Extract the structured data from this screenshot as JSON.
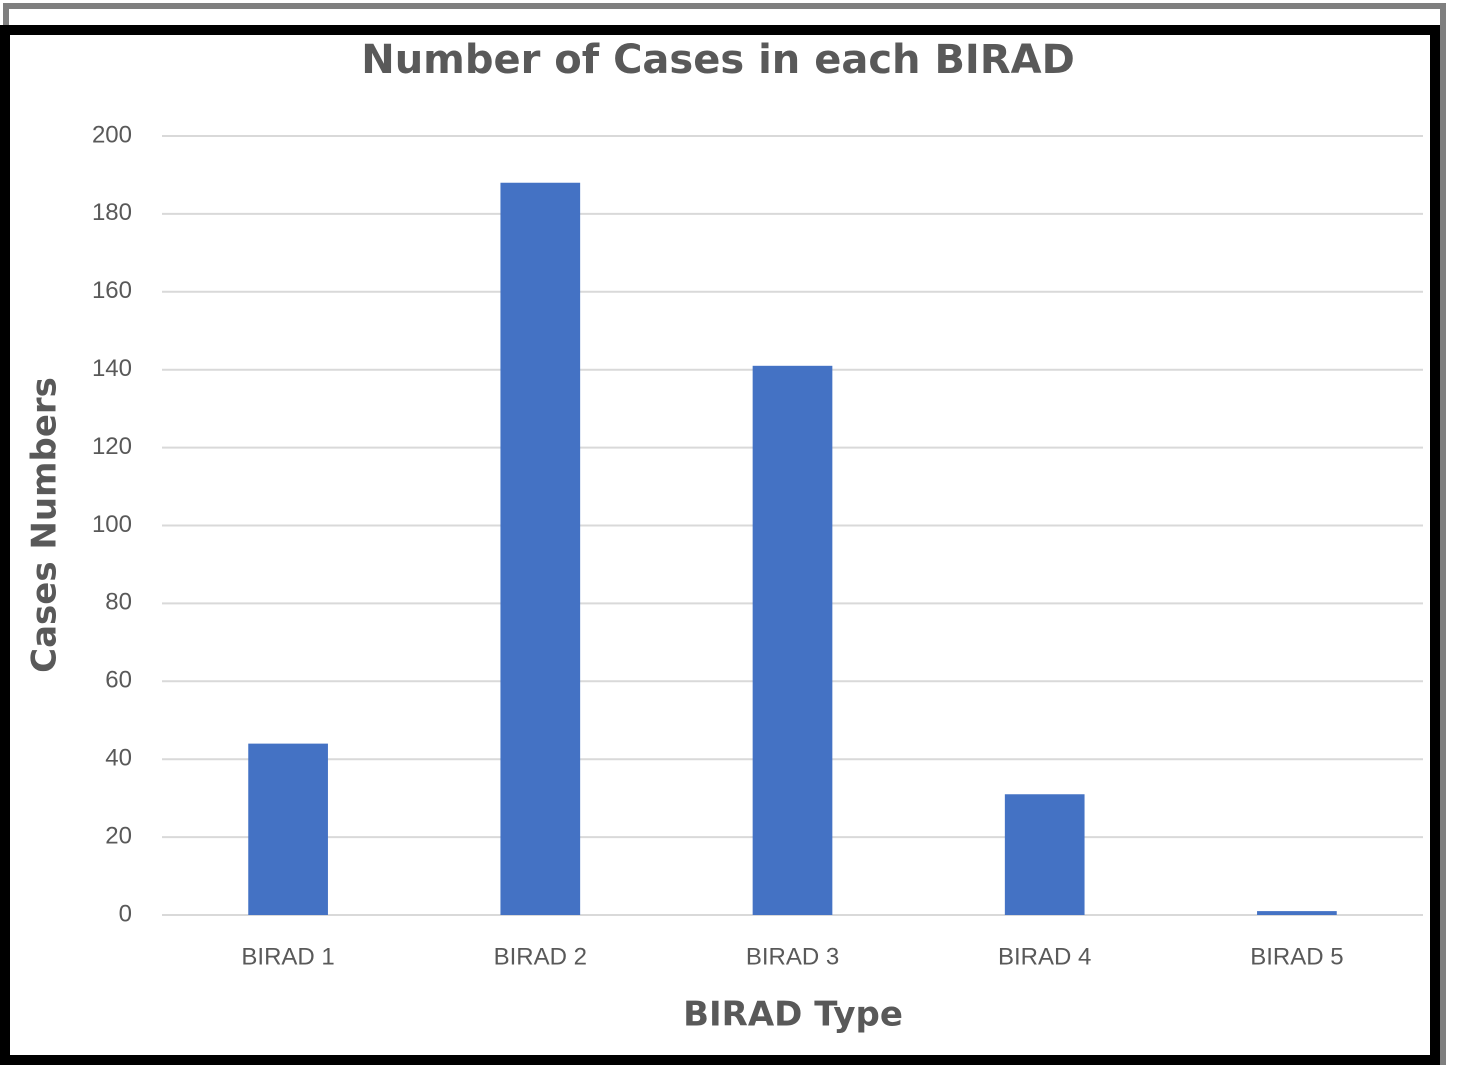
{
  "chart_data": {
    "type": "bar",
    "title": "Number of Cases in each BIRAD",
    "x_label": "BIRAD Type",
    "y_label": "Cases Numbers",
    "categories": [
      "BIRAD 1",
      "BIRAD 2",
      "BIRAD 3",
      "BIRAD 4",
      "BIRAD 5"
    ],
    "values": [
      44,
      188,
      141,
      31,
      1
    ],
    "color": "#4472c4",
    "ylim": [
      0,
      200
    ],
    "yticks": [
      0,
      20,
      40,
      60,
      80,
      100,
      120,
      140,
      160,
      180,
      200
    ],
    "grid": true
  }
}
